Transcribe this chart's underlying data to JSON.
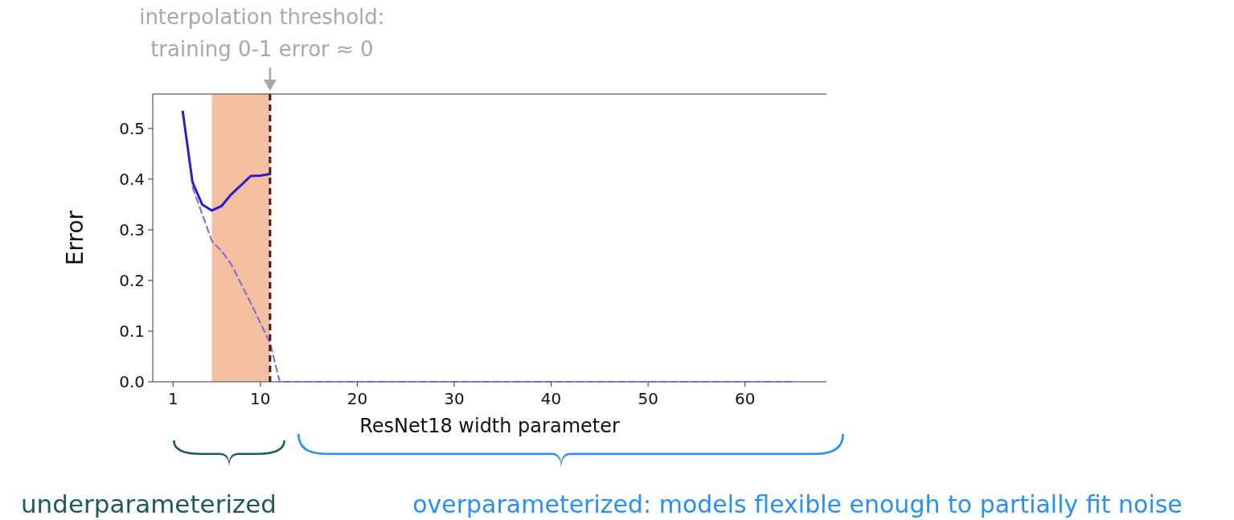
{
  "chart_data": {
    "type": "line",
    "xlabel": "ResNet18 width parameter",
    "ylabel": "Error",
    "xlim": [
      -1.1,
      68.4
    ],
    "xticks": [
      1,
      10,
      20,
      30,
      40,
      50,
      60
    ],
    "ylim": [
      0,
      0.568
    ],
    "yticks": [
      {
        "value": 0,
        "label": "0.0"
      },
      0.1,
      0.2,
      0.3,
      0.4,
      0.5
    ],
    "grid": false,
    "marker": "none",
    "series": [
      {
        "color": "#2a1fc8",
        "line_style": "solid",
        "x": [
          2,
          3,
          4,
          5,
          6,
          7,
          9,
          10,
          11
        ],
        "values": [
          0.533,
          0.394,
          0.35,
          0.338,
          0.347,
          0.37,
          0.406,
          0.407,
          0.41
        ]
      },
      {
        "color": "#7a6ad8",
        "line_style": "dashed",
        "x": [
          3,
          4,
          5,
          6,
          7,
          9,
          10,
          11,
          12,
          20,
          30,
          40,
          50,
          60,
          65
        ],
        "values": [
          0.384,
          0.331,
          0.278,
          0.258,
          0.232,
          0.156,
          0.116,
          0.077,
          0,
          0,
          0,
          0,
          0,
          0,
          0
        ]
      }
    ],
    "bands": [
      {
        "axis": "x",
        "from": 5,
        "to": 11,
        "color": "#f4bfa0"
      }
    ],
    "ref_lines": [
      {
        "axis": "x",
        "value": 11,
        "color": "#4a1a0a",
        "line_style": "dashed"
      }
    ],
    "annotations": [
      "interpolation threshold:\ntraining 0-1 error ≈ 0",
      "underparameterized",
      "overparameterized: models flexible enough to partially fit noise"
    ]
  }
}
